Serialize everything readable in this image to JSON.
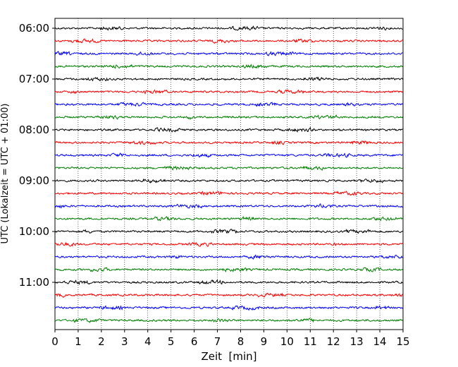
{
  "chart_data": {
    "type": "line",
    "subtype": "helicorder-seismogram",
    "title": "",
    "xlabel": "Zeit  [min]",
    "ylabel": "UTC (Lokalzeit = UTC + 01:00)",
    "xlim": [
      0,
      15
    ],
    "x_ticks": [
      "0",
      "1",
      "2",
      "3",
      "4",
      "5",
      "6",
      "7",
      "8",
      "9",
      "10",
      "11",
      "12",
      "13",
      "14",
      "15"
    ],
    "y_ticks": [
      "06:00",
      "07:00",
      "08:00",
      "09:00",
      "10:00",
      "11:00"
    ],
    "trace_start_times": [
      "06:00",
      "06:15",
      "06:30",
      "06:45",
      "07:00",
      "07:15",
      "07:30",
      "07:45",
      "08:00",
      "08:15",
      "08:30",
      "08:45",
      "09:00",
      "09:15",
      "09:30",
      "09:45",
      "10:00",
      "10:15",
      "10:30",
      "10:45",
      "11:00",
      "11:15",
      "11:30",
      "11:45"
    ],
    "trace_colors": [
      "#000000",
      "#ff0000",
      "#0000ff",
      "#008000"
    ],
    "x_grid": "dotted",
    "legend": "none"
  }
}
